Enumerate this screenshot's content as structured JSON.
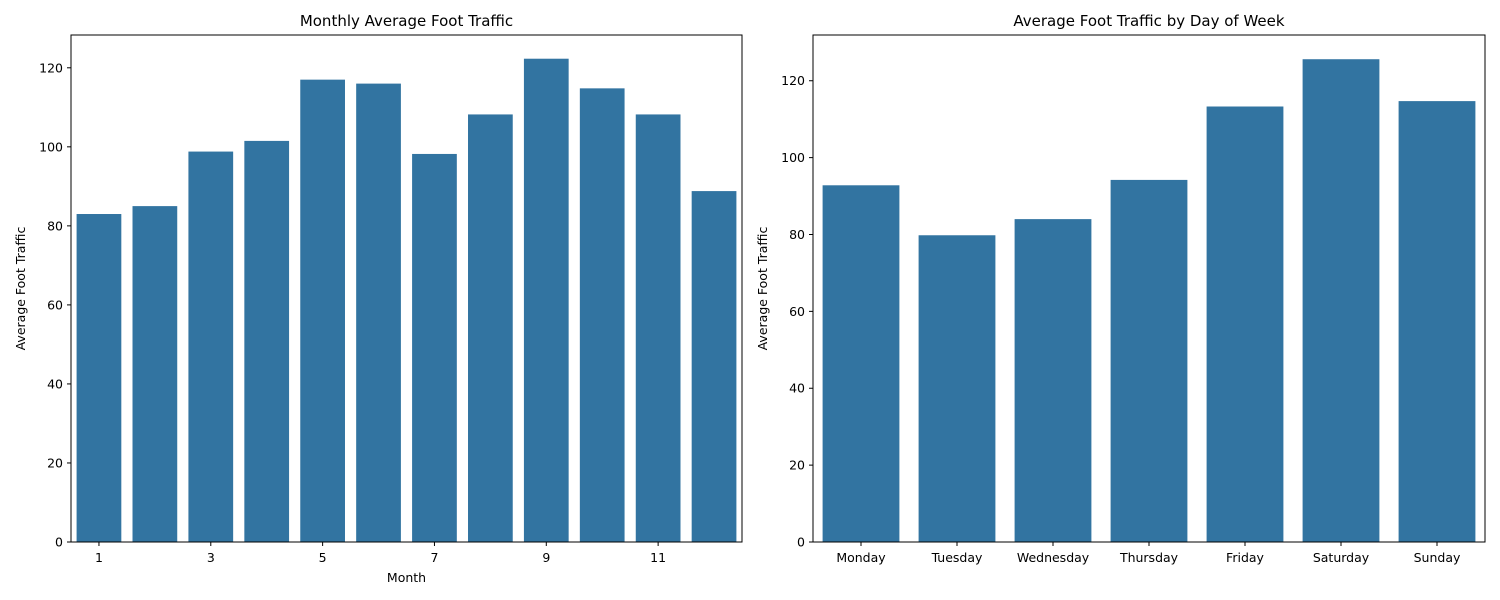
{
  "colors": {
    "bar": "#3274a1"
  },
  "chart_data": [
    {
      "type": "bar",
      "title": "Monthly Average Foot Traffic",
      "xlabel": "Month",
      "ylabel": "Average Foot Traffic",
      "categories": [
        "1",
        "2",
        "3",
        "4",
        "5",
        "6",
        "7",
        "8",
        "9",
        "10",
        "11",
        "12"
      ],
      "x_tick_labels_shown": [
        "1",
        "",
        "3",
        "",
        "5",
        "",
        "7",
        "",
        "9",
        "",
        "11",
        ""
      ],
      "values": [
        83,
        85,
        98.8,
        101.5,
        117,
        116,
        98.2,
        108.2,
        122.3,
        114.8,
        108.2,
        88.8
      ],
      "ylim": [
        0,
        128.3
      ],
      "yticks": [
        0,
        20,
        40,
        60,
        80,
        100,
        120
      ],
      "grid": false
    },
    {
      "type": "bar",
      "title": "Average Foot Traffic by Day of Week",
      "xlabel": "",
      "ylabel": "Average Foot Traffic",
      "categories": [
        "Monday",
        "Tuesday",
        "Wednesday",
        "Thursday",
        "Friday",
        "Saturday",
        "Sunday"
      ],
      "x_tick_labels_shown": [
        "Monday",
        "Tuesday",
        "Wednesday",
        "Thursday",
        "Friday",
        "Saturday",
        "Sunday"
      ],
      "values": [
        92.8,
        79.8,
        84,
        94.2,
        113.3,
        125.6,
        114.7
      ],
      "ylim": [
        0,
        131.9
      ],
      "yticks": [
        0,
        20,
        40,
        60,
        80,
        100,
        120
      ],
      "grid": false
    }
  ]
}
